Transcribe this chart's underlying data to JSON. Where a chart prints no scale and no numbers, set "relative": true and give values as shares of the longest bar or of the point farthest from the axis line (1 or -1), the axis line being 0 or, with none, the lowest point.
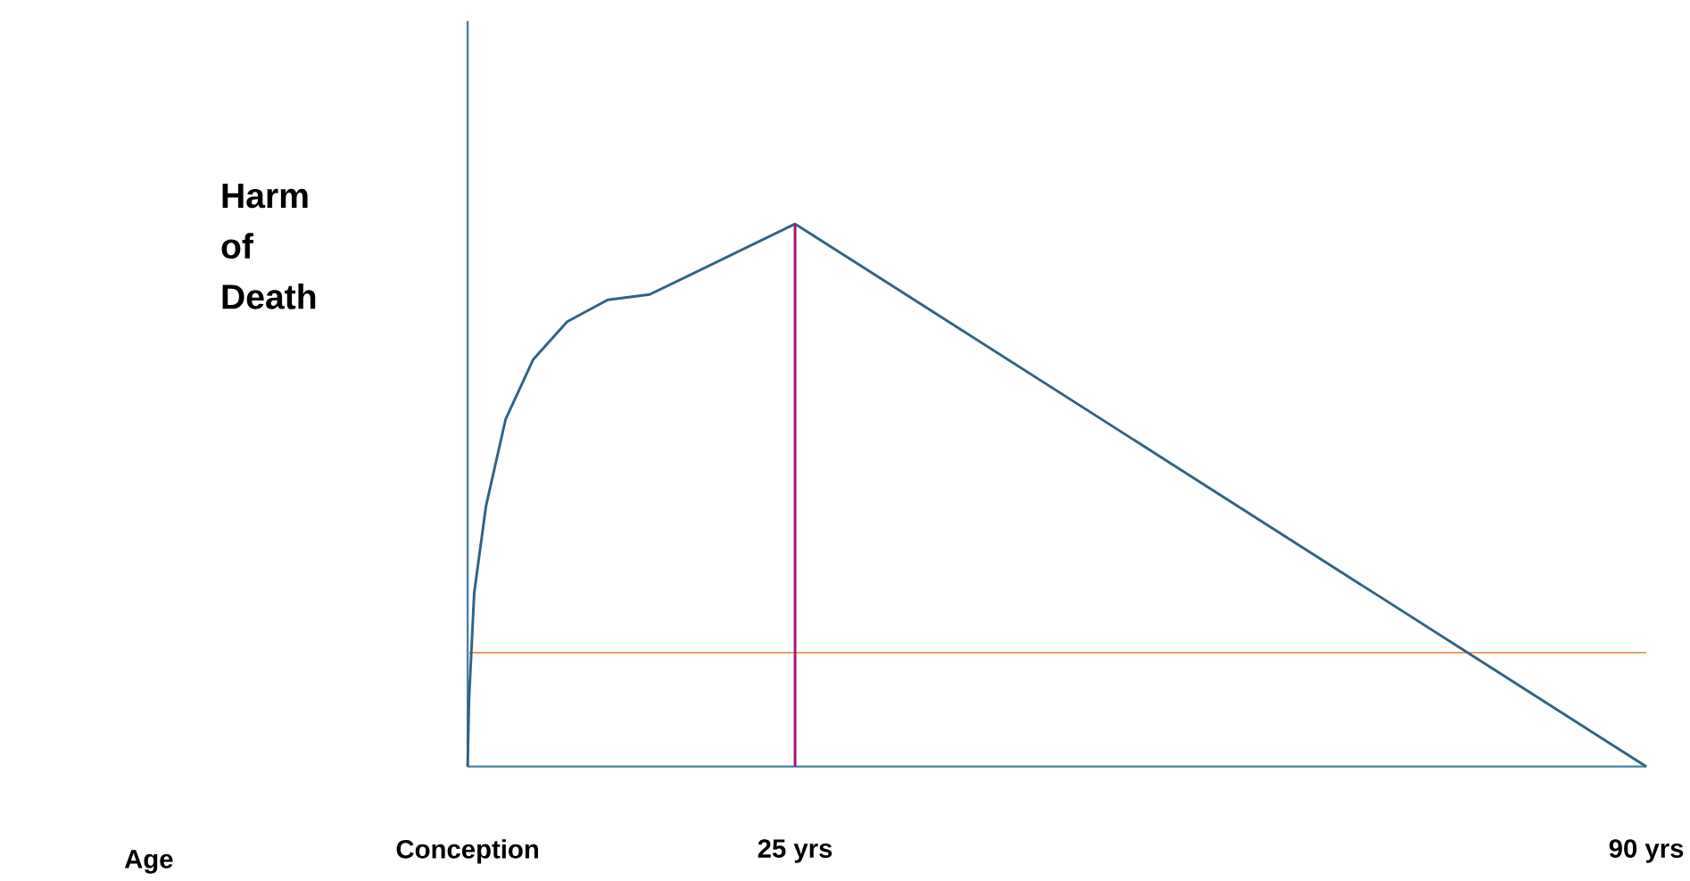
{
  "chart_data": {
    "type": "line",
    "relative": true,
    "annotations": [
      "Age"
    ],
    "ylabel": "Harm of Death",
    "xlim": [
      0,
      90
    ],
    "xticks": [
      {
        "value": 0,
        "label": "Conception"
      },
      {
        "value": 25,
        "label": "25 yrs"
      },
      {
        "value": 90,
        "label": "90 yrs"
      }
    ],
    "tick_labels": "x",
    "series": [
      {
        "color": "#2f6385",
        "x": [
          0,
          0.1,
          0.5,
          1.4,
          2.9,
          5,
          7.6,
          10.7,
          13.9,
          25,
          90
        ],
        "values": [
          0,
          0.12,
          0.32,
          0.48,
          0.64,
          0.75,
          0.82,
          0.86,
          0.87,
          1,
          0
        ]
      },
      {
        "color": "#a3156f",
        "x": [
          25,
          25
        ],
        "values": [
          0,
          1
        ]
      }
    ],
    "ref_lines": [
      {
        "axis": "y",
        "value": 0.21,
        "color": "#f0904a"
      }
    ]
  }
}
